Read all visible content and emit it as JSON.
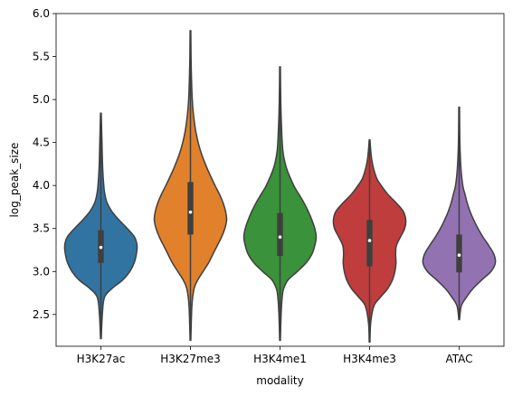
{
  "chart_data": {
    "type": "violin",
    "title": "",
    "xlabel": "modality",
    "ylabel": "log_peak_size",
    "ylim": [
      2.13,
      6.0
    ],
    "yticks": [
      2.5,
      3.0,
      3.5,
      4.0,
      4.5,
      5.0,
      5.5,
      6.0
    ],
    "ytick_labels": [
      "2.5",
      "3.0",
      "3.5",
      "4.0",
      "4.5",
      "5.0",
      "5.5",
      "6.0"
    ],
    "grid": false,
    "categories": [
      "H3K27ac",
      "H3K27me3",
      "H3K4me1",
      "H3K4me3",
      "ATAC"
    ],
    "series": [
      {
        "category": "H3K27ac",
        "color": "#3274a1",
        "min": 2.22,
        "max": 4.84,
        "q1": 3.1,
        "median": 3.28,
        "q3": 3.48,
        "density": [
          [
            2.22,
            0.01
          ],
          [
            2.5,
            0.04
          ],
          [
            2.7,
            0.1
          ],
          [
            2.8,
            0.3
          ],
          [
            2.9,
            0.6
          ],
          [
            3.0,
            0.8
          ],
          [
            3.1,
            0.92
          ],
          [
            3.2,
            0.98
          ],
          [
            3.3,
            1.0
          ],
          [
            3.4,
            0.93
          ],
          [
            3.5,
            0.73
          ],
          [
            3.6,
            0.5
          ],
          [
            3.7,
            0.3
          ],
          [
            3.8,
            0.17
          ],
          [
            3.9,
            0.11
          ],
          [
            4.0,
            0.08
          ],
          [
            4.2,
            0.05
          ],
          [
            4.5,
            0.03
          ],
          [
            4.84,
            0.01
          ]
        ]
      },
      {
        "category": "H3K27me3",
        "color": "#e1812c",
        "min": 2.2,
        "max": 5.8,
        "q1": 3.43,
        "median": 3.69,
        "q3": 4.04,
        "density": [
          [
            2.2,
            0.01
          ],
          [
            2.6,
            0.04
          ],
          [
            2.8,
            0.1
          ],
          [
            2.9,
            0.2
          ],
          [
            3.0,
            0.35
          ],
          [
            3.1,
            0.5
          ],
          [
            3.2,
            0.62
          ],
          [
            3.3,
            0.74
          ],
          [
            3.4,
            0.86
          ],
          [
            3.5,
            0.95
          ],
          [
            3.6,
            1.0
          ],
          [
            3.7,
            0.97
          ],
          [
            3.8,
            0.9
          ],
          [
            3.9,
            0.8
          ],
          [
            4.0,
            0.68
          ],
          [
            4.2,
            0.46
          ],
          [
            4.4,
            0.28
          ],
          [
            4.6,
            0.16
          ],
          [
            4.8,
            0.09
          ],
          [
            5.0,
            0.05
          ],
          [
            5.4,
            0.02
          ],
          [
            5.8,
            0.01
          ]
        ]
      },
      {
        "category": "H3K4me1",
        "color": "#3a923a",
        "min": 2.2,
        "max": 5.38,
        "q1": 3.18,
        "median": 3.4,
        "q3": 3.68,
        "density": [
          [
            2.2,
            0.01
          ],
          [
            2.5,
            0.03
          ],
          [
            2.7,
            0.06
          ],
          [
            2.8,
            0.1
          ],
          [
            2.9,
            0.22
          ],
          [
            3.0,
            0.48
          ],
          [
            3.1,
            0.72
          ],
          [
            3.2,
            0.88
          ],
          [
            3.3,
            0.96
          ],
          [
            3.4,
            1.0
          ],
          [
            3.5,
            0.96
          ],
          [
            3.6,
            0.88
          ],
          [
            3.7,
            0.78
          ],
          [
            3.8,
            0.66
          ],
          [
            3.9,
            0.52
          ],
          [
            4.0,
            0.38
          ],
          [
            4.2,
            0.18
          ],
          [
            4.4,
            0.08
          ],
          [
            4.7,
            0.04
          ],
          [
            5.0,
            0.02
          ],
          [
            5.38,
            0.01
          ]
        ]
      },
      {
        "category": "H3K4me3",
        "color": "#c03d3e",
        "min": 2.18,
        "max": 4.53,
        "q1": 3.06,
        "median": 3.36,
        "q3": 3.6,
        "density": [
          [
            2.18,
            0.01
          ],
          [
            2.4,
            0.03
          ],
          [
            2.6,
            0.12
          ],
          [
            2.7,
            0.3
          ],
          [
            2.8,
            0.5
          ],
          [
            2.9,
            0.63
          ],
          [
            3.0,
            0.7
          ],
          [
            3.1,
            0.73
          ],
          [
            3.2,
            0.72
          ],
          [
            3.3,
            0.74
          ],
          [
            3.4,
            0.85
          ],
          [
            3.5,
            0.97
          ],
          [
            3.6,
            1.0
          ],
          [
            3.7,
            0.93
          ],
          [
            3.8,
            0.73
          ],
          [
            3.9,
            0.5
          ],
          [
            4.0,
            0.32
          ],
          [
            4.1,
            0.18
          ],
          [
            4.3,
            0.06
          ],
          [
            4.53,
            0.01
          ]
        ]
      },
      {
        "category": "ATAC",
        "color": "#9372b2",
        "min": 2.44,
        "max": 4.91,
        "q1": 2.99,
        "median": 3.19,
        "q3": 3.43,
        "density": [
          [
            2.44,
            0.01
          ],
          [
            2.6,
            0.06
          ],
          [
            2.7,
            0.2
          ],
          [
            2.8,
            0.38
          ],
          [
            2.9,
            0.62
          ],
          [
            3.0,
            0.88
          ],
          [
            3.1,
            1.0
          ],
          [
            3.2,
            0.96
          ],
          [
            3.3,
            0.82
          ],
          [
            3.4,
            0.66
          ],
          [
            3.5,
            0.52
          ],
          [
            3.6,
            0.4
          ],
          [
            3.7,
            0.3
          ],
          [
            3.8,
            0.22
          ],
          [
            3.9,
            0.16
          ],
          [
            4.0,
            0.1
          ],
          [
            4.2,
            0.05
          ],
          [
            4.5,
            0.02
          ],
          [
            4.91,
            0.01
          ]
        ]
      }
    ]
  }
}
